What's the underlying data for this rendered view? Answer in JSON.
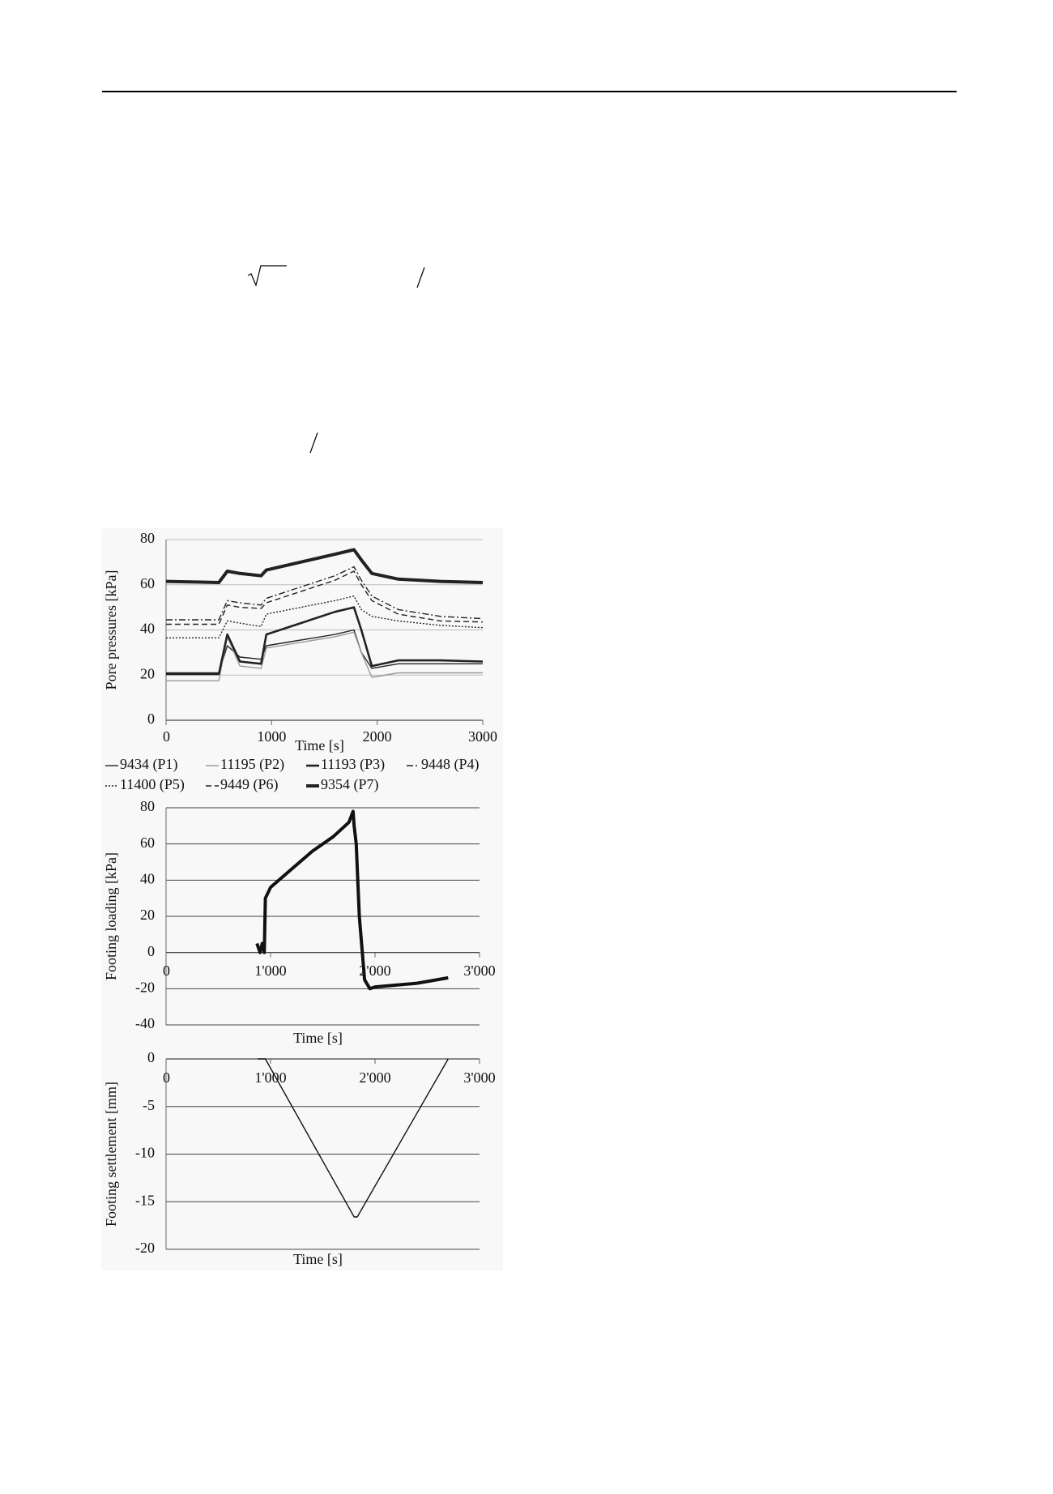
{
  "chart_data": [
    {
      "type": "line",
      "x_label": "Time [s]",
      "y_label": "Pore pressures [kPa]",
      "x": [
        0,
        500,
        580,
        700,
        900,
        950,
        1600,
        1780,
        1850,
        1950,
        2200,
        2600,
        3000
      ],
      "xlim": [
        0,
        3000
      ],
      "xticks": [
        0,
        1000,
        2000,
        3000
      ],
      "ylim": [
        0,
        80
      ],
      "yticks": [
        0,
        20,
        40,
        60,
        80
      ],
      "grid": true,
      "series": [
        {
          "name": "9434 (P1)",
          "color": "#222222",
          "style": "solid",
          "weight": "normal",
          "values": [
            21,
            21,
            33,
            28,
            27,
            33,
            38,
            40,
            30,
            23,
            25,
            25,
            25
          ]
        },
        {
          "name": "11195 (P2)",
          "color": "#999999",
          "style": "solid",
          "weight": "normal",
          "values": [
            17.5,
            17.5,
            37,
            24,
            23,
            32,
            37,
            39,
            30,
            19,
            21,
            21,
            21
          ]
        },
        {
          "name": "11193 (P3)",
          "color": "#222222",
          "style": "solid",
          "weight": "thick",
          "values": [
            20.5,
            20.5,
            38,
            26,
            25,
            38,
            48,
            50,
            40,
            24,
            26.5,
            26.5,
            26
          ]
        },
        {
          "name": "9448 (P4)",
          "color": "#222222",
          "style": "dashdot",
          "weight": "normal",
          "values": [
            44.5,
            44.5,
            53,
            52,
            51,
            54,
            64,
            68,
            62,
            55,
            49,
            46,
            45
          ]
        },
        {
          "name": "11400 (P5)",
          "color": "#222222",
          "style": "dotted",
          "weight": "normal",
          "values": [
            36.5,
            36.5,
            44,
            43,
            41.5,
            47,
            53,
            55,
            49,
            46,
            44,
            42,
            41
          ]
        },
        {
          "name": "9449 (P6)",
          "color": "#222222",
          "style": "dashed",
          "weight": "normal",
          "values": [
            42.5,
            42.5,
            51,
            50,
            49.5,
            52,
            62,
            66,
            60,
            53,
            47,
            44,
            43.5
          ]
        },
        {
          "name": "9354 (P7)",
          "color": "#222222",
          "style": "solid",
          "weight": "heavy",
          "values": [
            61.5,
            61,
            66,
            65,
            64,
            66.5,
            73.5,
            75.5,
            71,
            65,
            62.5,
            61.5,
            61
          ]
        }
      ]
    },
    {
      "type": "line",
      "x_label": "Time [s]",
      "y_label": "Footing loading [kPa]",
      "x": [
        870,
        900,
        920,
        940,
        950,
        1000,
        1200,
        1400,
        1600,
        1750,
        1790,
        1800,
        1820,
        1850,
        1900,
        1950,
        2000,
        2200,
        2400,
        2700
      ],
      "values": [
        5,
        0,
        5,
        0,
        30,
        36,
        46,
        56,
        64,
        72,
        78,
        70,
        60,
        20,
        -15,
        -20,
        -19,
        -18,
        -17,
        -14
      ],
      "color": "#111111",
      "xlim": [
        0,
        3000
      ],
      "xticks": [
        0,
        {
          "value": 1000,
          "label": "1'000"
        },
        {
          "value": 2000,
          "label": "2'000"
        },
        {
          "value": 3000,
          "label": "3'000"
        }
      ],
      "ylim": [
        -40,
        80
      ],
      "yticks": [
        -40,
        -20,
        0,
        20,
        40,
        60,
        80
      ],
      "grid": true
    },
    {
      "type": "line",
      "x_label": "Time [s]",
      "y_label": "Footing settlement [mm]",
      "x": [
        880,
        950,
        1800,
        1830,
        2700
      ],
      "values": [
        0,
        0,
        -16.6,
        -16.6,
        0
      ],
      "color": "#111111",
      "xlim": [
        0,
        3000
      ],
      "xticks": [
        0,
        {
          "value": 1000,
          "label": "1'000"
        },
        {
          "value": 2000,
          "label": "2'000"
        },
        {
          "value": 3000,
          "label": "3'000"
        }
      ],
      "ylim": [
        -20,
        0
      ],
      "yticks": [
        -20,
        -15,
        -10,
        -5,
        0
      ],
      "grid": true
    }
  ]
}
